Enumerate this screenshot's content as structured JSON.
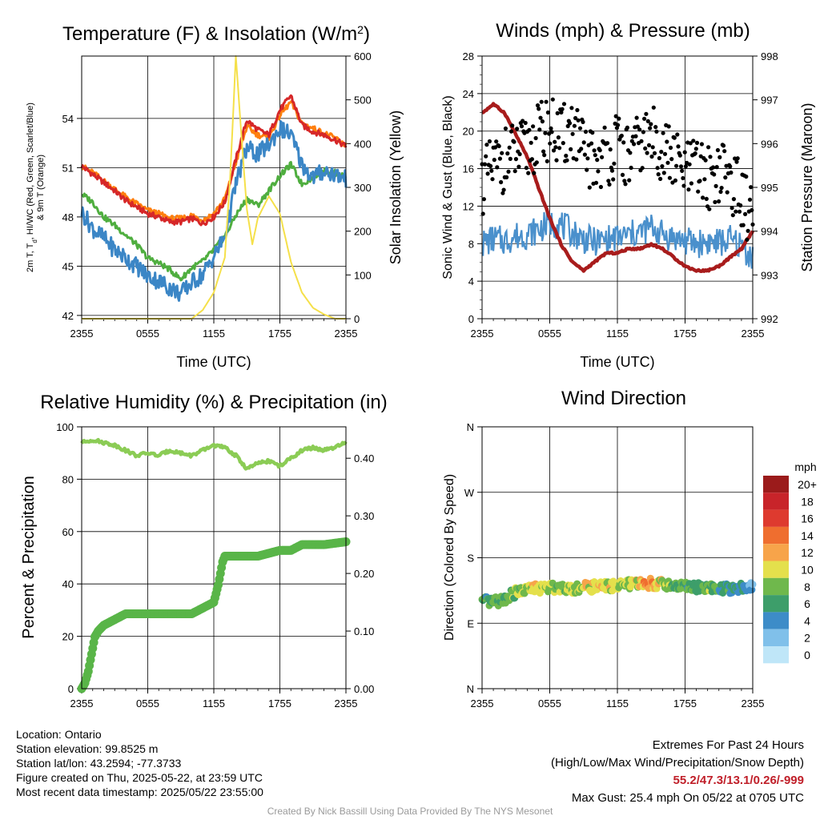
{
  "chart_data": [
    {
      "type": "line",
      "title": "Temperature (F) & Insolation (W/m",
      "title_sup": "2",
      "title_close": ")",
      "xlabel": "Time (UTC)",
      "ylabel_lines": [
        "2m T, T",
        "d",
        ", HI/WC (Red, Green, Scarlet/Blue)",
        "& 9m T (Orange)"
      ],
      "ylabel2": "Solar Insolation (Yellow)",
      "xticks": [
        "2355",
        "0555",
        "1155",
        "1755",
        "2355"
      ],
      "yticks": [
        42,
        45,
        48,
        51,
        54
      ],
      "yticks2": [
        0,
        100,
        200,
        300,
        400,
        500,
        600
      ],
      "ylim": [
        41.8,
        57.8
      ],
      "ylim2": [
        0,
        600
      ],
      "grid": true,
      "series": [
        {
          "color": "#d62728",
          "axis": "left",
          "x": [
            0,
            1,
            2,
            3,
            4,
            5,
            6,
            7,
            8,
            9,
            10,
            11,
            12,
            13,
            14,
            15,
            16,
            17,
            18,
            19,
            20,
            21,
            22,
            23,
            24
          ],
          "values": [
            51.1,
            50.6,
            50.1,
            49.6,
            49.0,
            48.6,
            48.2,
            48.0,
            47.7,
            47.7,
            47.9,
            47.6,
            48.0,
            48.9,
            51.5,
            53.9,
            53.3,
            53.0,
            54.5,
            55.4,
            53.6,
            53.2,
            53.0,
            52.7,
            52.3
          ]
        },
        {
          "color": "#ff7f0e",
          "axis": "left",
          "x": [
            0,
            1,
            2,
            3,
            4,
            5,
            6,
            7,
            8,
            9,
            10,
            11,
            12,
            13,
            14,
            15,
            16,
            17,
            18,
            19,
            20,
            21,
            22,
            23,
            24
          ],
          "values": [
            51.1,
            50.7,
            50.2,
            49.7,
            49.2,
            48.8,
            48.4,
            48.2,
            47.9,
            47.9,
            48.1,
            47.8,
            48.2,
            49.1,
            51.3,
            53.5,
            53.0,
            52.8,
            54.2,
            55.0,
            53.7,
            53.4,
            53.1,
            52.8,
            52.4
          ]
        },
        {
          "color": "#4fae3f",
          "axis": "left",
          "x": [
            0,
            1,
            2,
            3,
            4,
            5,
            6,
            7,
            8,
            9,
            10,
            11,
            12,
            13,
            14,
            15,
            16,
            17,
            18,
            19,
            20,
            21,
            22,
            23,
            24
          ],
          "values": [
            49.4,
            48.9,
            48.0,
            47.5,
            46.9,
            46.3,
            45.5,
            45.2,
            44.8,
            44.2,
            44.9,
            45.3,
            46.0,
            46.8,
            48.1,
            49.1,
            48.7,
            49.6,
            50.5,
            51.2,
            50.0,
            50.4,
            50.8,
            50.7,
            50.4
          ]
        },
        {
          "color": "#3b86c6",
          "axis": "left",
          "x": [
            0,
            1,
            2,
            3,
            4,
            5,
            6,
            7,
            8,
            9,
            10,
            11,
            12,
            13,
            14,
            15,
            16,
            17,
            18,
            19,
            20,
            21,
            22,
            23,
            24
          ],
          "values": [
            48.3,
            47.3,
            46.7,
            46.0,
            45.5,
            45.0,
            44.4,
            44.1,
            43.7,
            43.3,
            44.0,
            44.5,
            45.6,
            46.8,
            50.0,
            52.2,
            51.8,
            52.4,
            53.4,
            53.0,
            51.2,
            50.4,
            50.8,
            50.6,
            50.3
          ]
        },
        {
          "color": "#f5e04a",
          "axis": "right",
          "x": [
            0,
            2,
            4,
            6,
            8,
            10,
            11,
            12,
            13,
            13.5,
            14,
            14.5,
            15,
            15.5,
            16,
            17,
            18,
            19,
            20,
            21,
            22,
            23,
            24
          ],
          "values": [
            0,
            0,
            0,
            0,
            0,
            0,
            20,
            60,
            140,
            330,
            600,
            420,
            250,
            170,
            230,
            280,
            240,
            130,
            60,
            25,
            10,
            0,
            0
          ]
        }
      ]
    },
    {
      "type": "line",
      "title": "Winds (mph) & Pressure (mb)",
      "xlabel": "Time (UTC)",
      "ylabel": "Sonic Wind & Gust (Blue, Black)",
      "ylabel2": "Station Pressure (Maroon)",
      "xticks": [
        "2355",
        "0555",
        "1155",
        "1755",
        "2355"
      ],
      "yticks": [
        0,
        4,
        8,
        12,
        16,
        20,
        24,
        28
      ],
      "yticks2": [
        992,
        993,
        994,
        995,
        996,
        997,
        998
      ],
      "ylim": [
        0,
        28
      ],
      "ylim2": [
        992,
        998
      ],
      "grid": true,
      "series": [
        {
          "color": "#4a90cc",
          "axis": "left",
          "kind": "line",
          "x": [
            0,
            1,
            2,
            3,
            4,
            5,
            6,
            7,
            8,
            9,
            10,
            11,
            12,
            13,
            14,
            15,
            16,
            17,
            18,
            19,
            20,
            21,
            22,
            23,
            24
          ],
          "values": [
            8.0,
            8.5,
            8.3,
            8.8,
            9.0,
            9.5,
            10.2,
            10.0,
            9.2,
            8.5,
            8.2,
            8.4,
            8.6,
            8.9,
            9.2,
            9.8,
            9.0,
            8.6,
            8.3,
            8.0,
            8.2,
            8.1,
            8.4,
            7.8,
            6.5
          ]
        },
        {
          "color": "#000000",
          "axis": "left",
          "kind": "scatter",
          "x": [
            0,
            1,
            2,
            3,
            4,
            5,
            6,
            7,
            8,
            9,
            10,
            11,
            12,
            13,
            14,
            15,
            16,
            17,
            18,
            19,
            20,
            21,
            22,
            23,
            24
          ],
          "values": [
            14.5,
            16.0,
            17.0,
            17.5,
            18.0,
            19.5,
            20.5,
            19.0,
            20.5,
            17.5,
            16.8,
            17.5,
            18.5,
            17.0,
            18.5,
            19.5,
            18.0,
            17.0,
            15.5,
            16.0,
            15.0,
            15.8,
            15.0,
            13.0,
            10.5
          ]
        },
        {
          "color": "#a81c1c",
          "axis": "right",
          "kind": "line",
          "x": [
            0,
            1,
            2,
            3,
            4,
            5,
            6,
            7,
            8,
            9,
            10,
            11,
            12,
            13,
            14,
            15,
            16,
            17,
            18,
            19,
            20,
            21,
            22,
            23,
            24
          ],
          "values": [
            996.7,
            996.9,
            996.7,
            996.2,
            995.7,
            995.0,
            994.3,
            993.7,
            993.3,
            993.1,
            993.3,
            993.5,
            993.5,
            993.6,
            993.6,
            993.7,
            993.6,
            993.4,
            993.2,
            993.1,
            993.1,
            993.2,
            993.4,
            993.6,
            994.0
          ]
        }
      ]
    },
    {
      "type": "line",
      "title": "Relative Humidity (%) & Precipitation (in)",
      "ylabel": "Percent & Precipitation",
      "xticks": [
        "2355",
        "0555",
        "1155",
        "1755",
        "2355"
      ],
      "yticks": [
        0,
        20,
        40,
        60,
        80,
        100
      ],
      "yticks2": [
        "0.00",
        "0.10",
        "0.20",
        "0.30",
        "0.40"
      ],
      "ylim": [
        0,
        100
      ],
      "ylim2": [
        0,
        0.4545
      ],
      "grid": true,
      "series": [
        {
          "color": "#8bcc55",
          "axis": "left",
          "x": [
            0,
            1,
            2,
            3,
            4,
            5,
            6,
            7,
            8,
            9,
            10,
            11,
            12,
            13,
            14,
            15,
            16,
            17,
            18,
            19,
            20,
            21,
            22,
            23,
            24
          ],
          "values": [
            94,
            95,
            94,
            93,
            91,
            89,
            90,
            89,
            91,
            90,
            89,
            91,
            93,
            92,
            89,
            84,
            86,
            87,
            85,
            88,
            91,
            92,
            91,
            92,
            94
          ]
        },
        {
          "color": "#59b548",
          "axis": "right",
          "x": [
            0,
            0.3,
            0.6,
            0.9,
            1.2,
            1.5,
            2,
            3,
            4,
            6,
            8,
            10,
            11,
            12,
            12.4,
            12.8,
            13,
            14,
            15,
            16,
            18,
            19,
            20,
            22,
            24
          ],
          "values": [
            0,
            0.01,
            0.03,
            0.06,
            0.09,
            0.1,
            0.11,
            0.12,
            0.13,
            0.13,
            0.13,
            0.13,
            0.14,
            0.15,
            0.18,
            0.22,
            0.23,
            0.23,
            0.23,
            0.23,
            0.24,
            0.24,
            0.25,
            0.25,
            0.255
          ]
        }
      ]
    },
    {
      "type": "scatter",
      "title": "Wind Direction",
      "ylabel": "Direction (Colored By Speed)",
      "xticks": [
        "2355",
        "0555",
        "1155",
        "1755",
        "2355"
      ],
      "yticks": [
        "N",
        "E",
        "S",
        "W",
        "N"
      ],
      "ylim": [
        0,
        360
      ],
      "legend": "right",
      "legend_title": "mph",
      "legend_labels": [
        "0",
        "2",
        "4",
        "6",
        "8",
        "10",
        "12",
        "14",
        "16",
        "18",
        "20+"
      ],
      "legend_colors": [
        "#bfe6f8",
        "#80c0ea",
        "#3d8cc8",
        "#3d9e6a",
        "#6fb84c",
        "#e4e04c",
        "#f7a44a",
        "#ef6e2f",
        "#de3a2f",
        "#c8242a",
        "#9b1b1b"
      ],
      "x": [
        0,
        1,
        2,
        3,
        4,
        5,
        6,
        7,
        8,
        9,
        10,
        11,
        12,
        13,
        14,
        15,
        16,
        17,
        18,
        19,
        20,
        21,
        22,
        23,
        24
      ],
      "values": [
        120,
        118,
        124,
        132,
        136,
        138,
        139,
        140,
        138,
        139,
        140,
        141,
        142,
        143,
        144,
        145,
        144,
        142,
        140,
        139,
        138,
        137,
        138,
        139,
        140
      ],
      "speeds": [
        6,
        7,
        6,
        8,
        9,
        10,
        9,
        8,
        9,
        10,
        11,
        10,
        9,
        8,
        11,
        12,
        9,
        8,
        7,
        6,
        8,
        6,
        5,
        5,
        4
      ]
    }
  ],
  "info": {
    "location": "Location: Ontario",
    "elevation": "Station elevation: 99.8525 m",
    "latlon": "Station lat/lon: 43.2594; -77.3733",
    "created": "Figure created on Thu, 2025-05-22, at 23:59 UTC",
    "recent": "Most recent data timestamp: 2025/05/22 23:55:00"
  },
  "extremes": {
    "title": "Extremes For Past 24 Hours",
    "subtitle": "(High/Low/Max Wind/Precipitation/Snow Depth)",
    "values": "55.2/47.3/13.1/0.26/-999",
    "gust": "Max Gust: 25.4 mph On 05/22 at 0705 UTC"
  },
  "credit": "Created By Nick Bassill Using Data Provided By The NYS Mesonet"
}
